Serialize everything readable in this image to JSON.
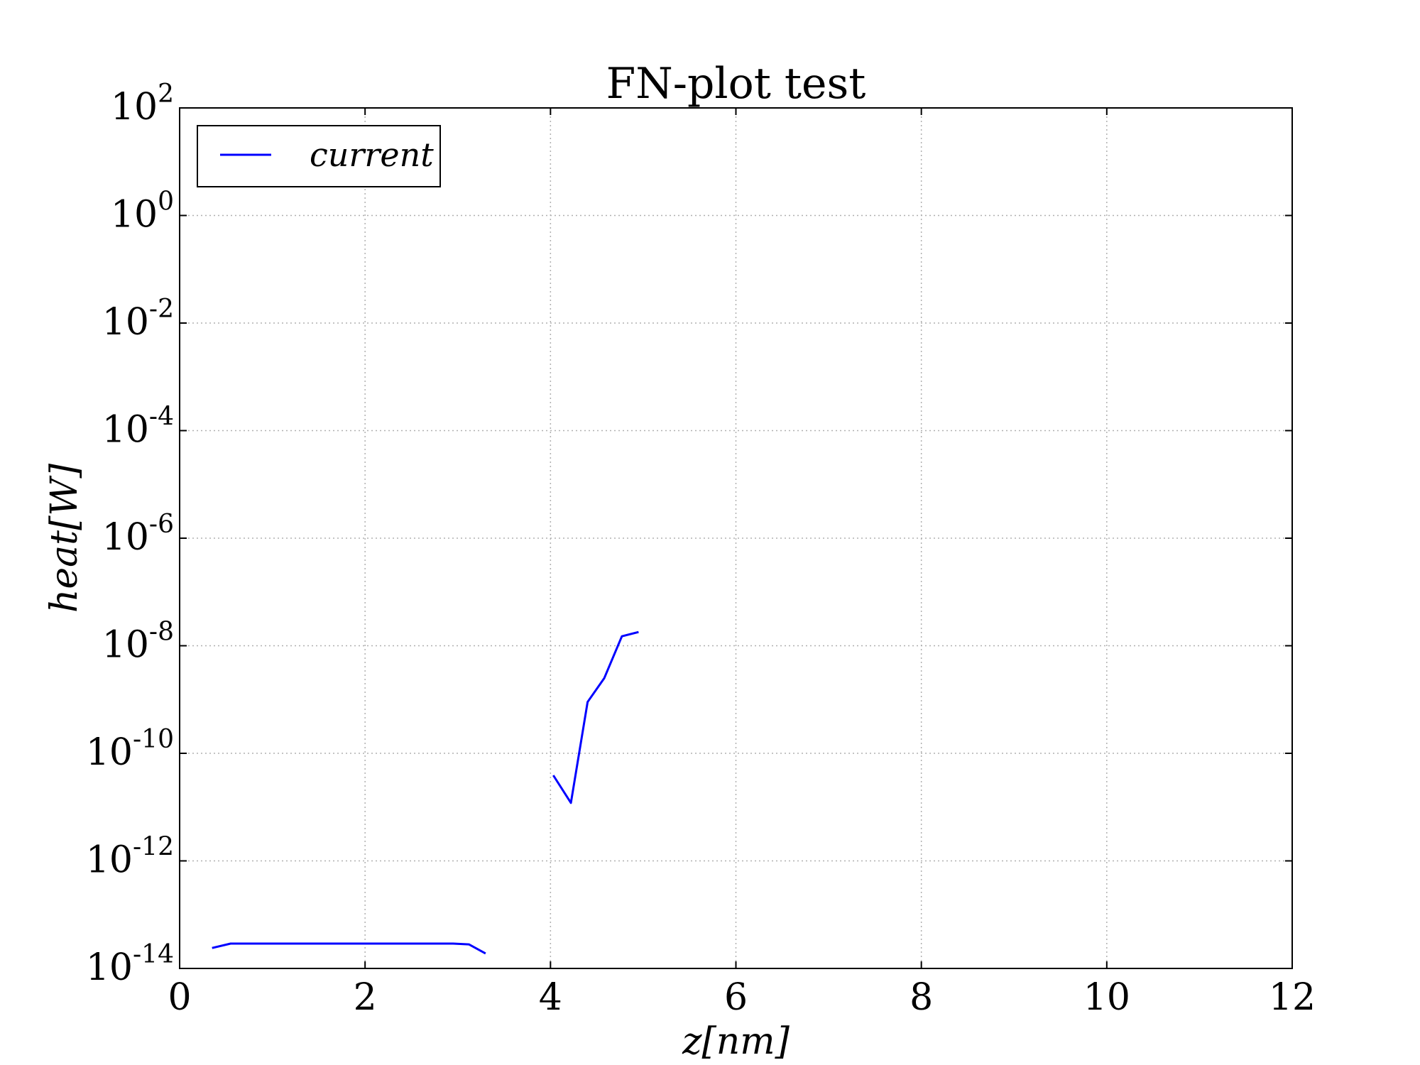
{
  "chart_data": {
    "type": "line",
    "title": "FN-plot test",
    "xlabel": "z[nm]",
    "ylabel": "heat[W]",
    "xlim": [
      0,
      12
    ],
    "ylim": [
      1e-14,
      100.0
    ],
    "yscale": "log",
    "grid": true,
    "legend_position": "upper-left",
    "x_ticks": [
      "0",
      "2",
      "4",
      "6",
      "8",
      "10",
      "12"
    ],
    "y_ticks": [
      {
        "base": "10",
        "exp": "-14"
      },
      {
        "base": "10",
        "exp": "-12"
      },
      {
        "base": "10",
        "exp": "-10"
      },
      {
        "base": "10",
        "exp": "-8"
      },
      {
        "base": "10",
        "exp": "-6"
      },
      {
        "base": "10",
        "exp": "-4"
      },
      {
        "base": "10",
        "exp": "-2"
      },
      {
        "base": "10",
        "exp": "0"
      },
      {
        "base": "10",
        "exp": "2"
      }
    ],
    "series": [
      {
        "name": "current",
        "color": "#0000ff",
        "segments": [
          {
            "x": [
              0.35,
              0.55,
              1.0,
              1.5,
              2.0,
              2.5,
              2.95,
              3.12,
              3.3
            ],
            "y": [
              2.4e-14,
              2.9e-14,
              2.9e-14,
              2.9e-14,
              2.9e-14,
              2.9e-14,
              2.9e-14,
              2.8e-14,
              1.9e-14
            ]
          },
          {
            "x": [
              4.03,
              4.22,
              4.4,
              4.58,
              4.77,
              4.95
            ],
            "y": [
              3.9e-11,
              1.2e-11,
              9e-10,
              2.5e-09,
              1.5e-08,
              1.8e-08
            ]
          }
        ]
      }
    ]
  }
}
